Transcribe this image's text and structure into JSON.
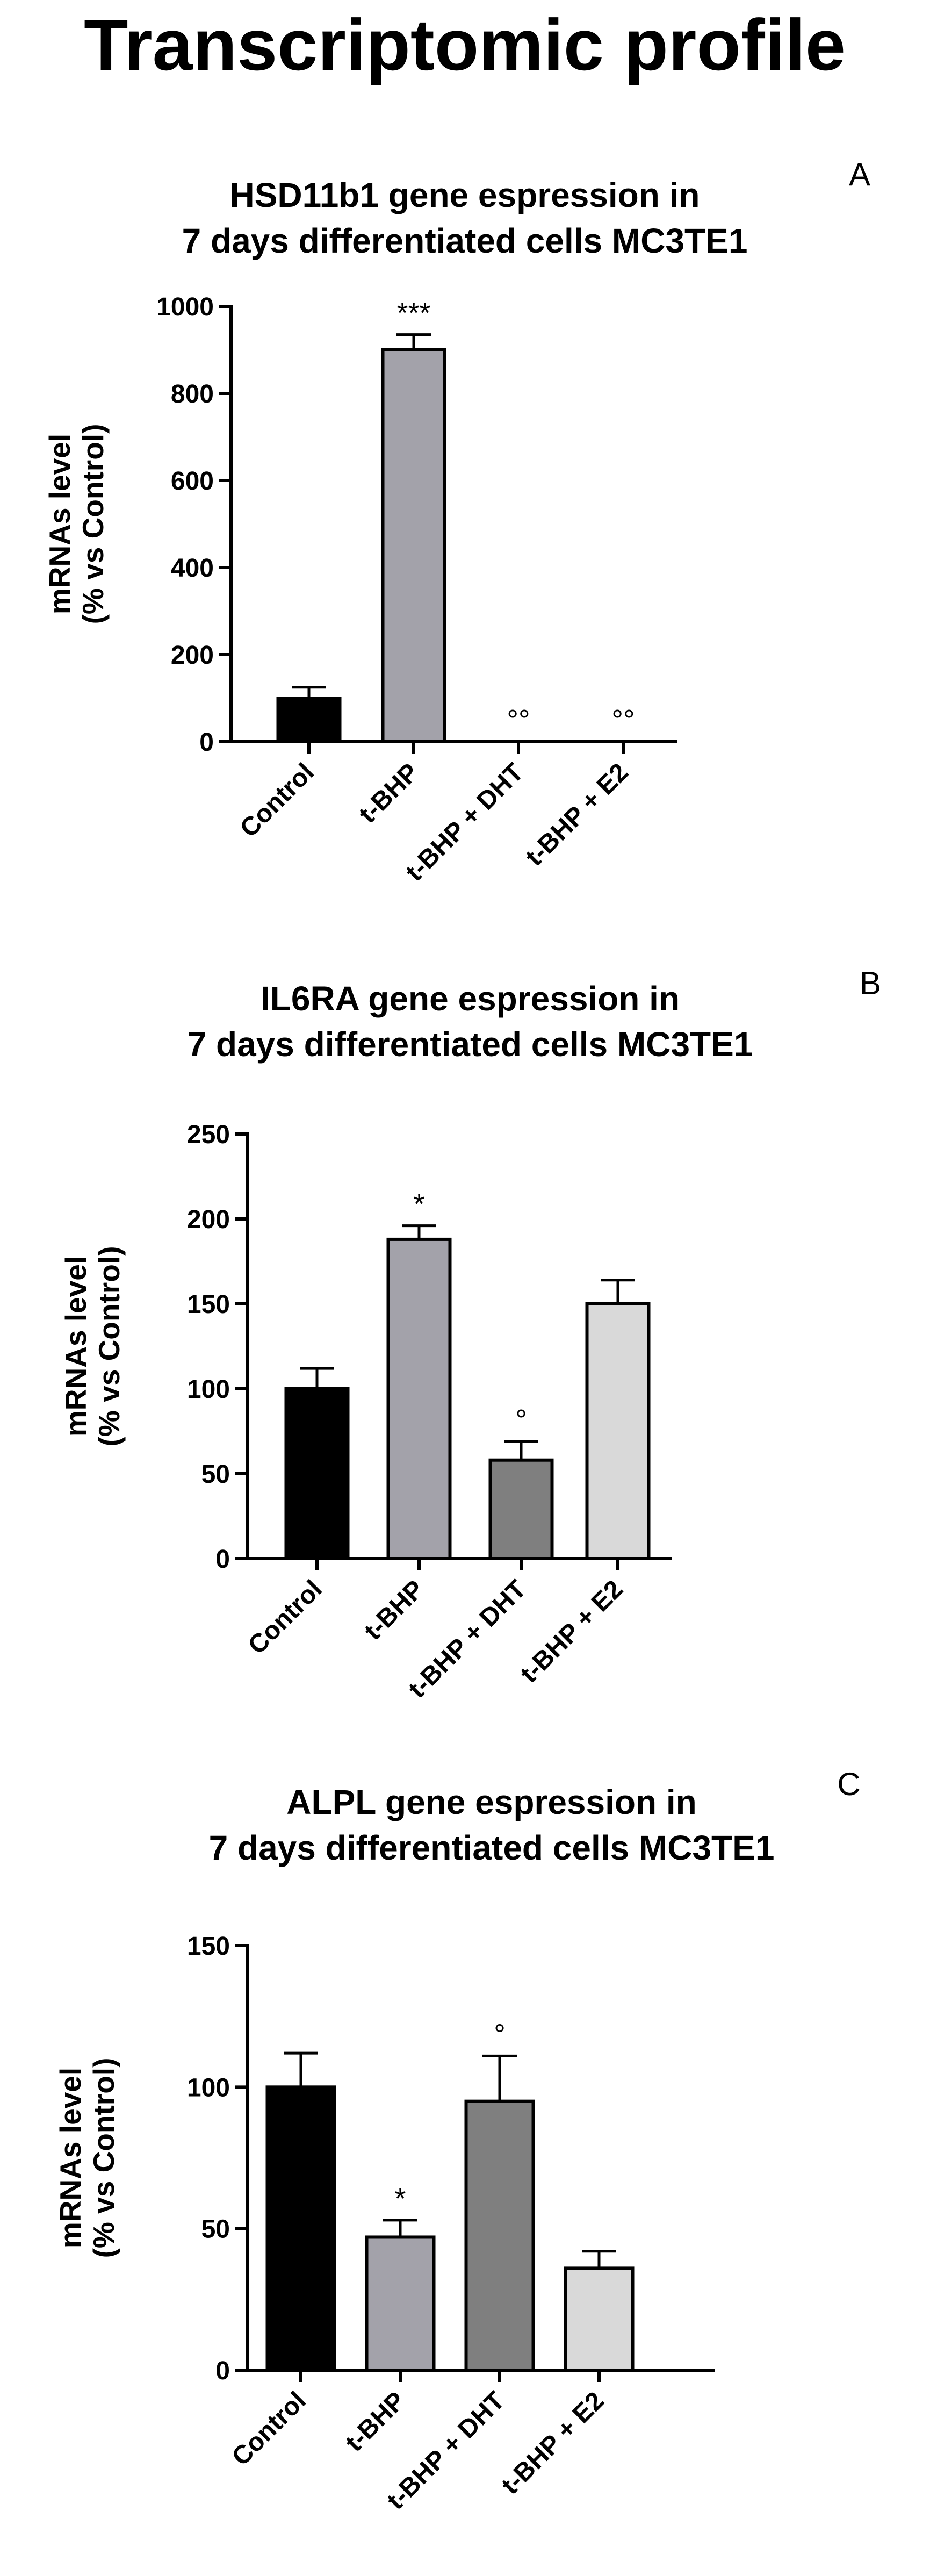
{
  "page_title": "Transcriptomic profile",
  "chart_data": [
    {
      "type": "bar",
      "panel": "A",
      "title": [
        "HSD11b1 gene espression in",
        "7 days differentiated cells MC3TE1"
      ],
      "ylabel": [
        "mRNAs level",
        "(% vs Control)"
      ],
      "categories": [
        "Control",
        "t-BHP",
        "t-BHP + DHT",
        "t-BHP + E2"
      ],
      "values": [
        100,
        900,
        0,
        0
      ],
      "errors": [
        25,
        35,
        0,
        0
      ],
      "significance": [
        "",
        "***",
        "°°",
        "°°"
      ],
      "ylim": [
        0,
        1000
      ],
      "yticks": [
        0,
        200,
        400,
        600,
        800,
        1000
      ],
      "bar_colors": [
        "#000000",
        "#a3a2aa",
        "#7f7f7f",
        "#d9d9d9"
      ]
    },
    {
      "type": "bar",
      "panel": "B",
      "title": [
        "IL6RA gene espression in",
        "7 days differentiated cells MC3TE1"
      ],
      "ylabel": [
        "mRNAs level",
        "(% vs Control)"
      ],
      "categories": [
        "Control",
        "t-BHP",
        "t-BHP + DHT",
        "t-BHP + E2"
      ],
      "values": [
        100,
        188,
        58,
        150
      ],
      "errors": [
        12,
        8,
        11,
        14
      ],
      "significance": [
        "",
        "*",
        "°",
        ""
      ],
      "ylim": [
        0,
        250
      ],
      "yticks": [
        0,
        50,
        100,
        150,
        200,
        250
      ],
      "bar_colors": [
        "#000000",
        "#a3a2aa",
        "#7f7f7f",
        "#d9d9d9"
      ]
    },
    {
      "type": "bar",
      "panel": "C",
      "title": [
        "ALPL gene espression in",
        "7 days differentiated cells MC3TE1"
      ],
      "ylabel": [
        "mRNAs level",
        "(% vs Control)"
      ],
      "categories": [
        "Control",
        "t-BHP",
        "t-BHP + DHT",
        "t-BHP + E2"
      ],
      "values": [
        100,
        47,
        95,
        36
      ],
      "errors": [
        12,
        6,
        16,
        6
      ],
      "significance": [
        "",
        "*",
        "°",
        ""
      ],
      "ylim": [
        0,
        150
      ],
      "yticks": [
        0,
        50,
        100,
        150
      ],
      "bar_colors": [
        "#000000",
        "#a3a2aa",
        "#7f7f7f",
        "#d9d9d9"
      ]
    }
  ]
}
